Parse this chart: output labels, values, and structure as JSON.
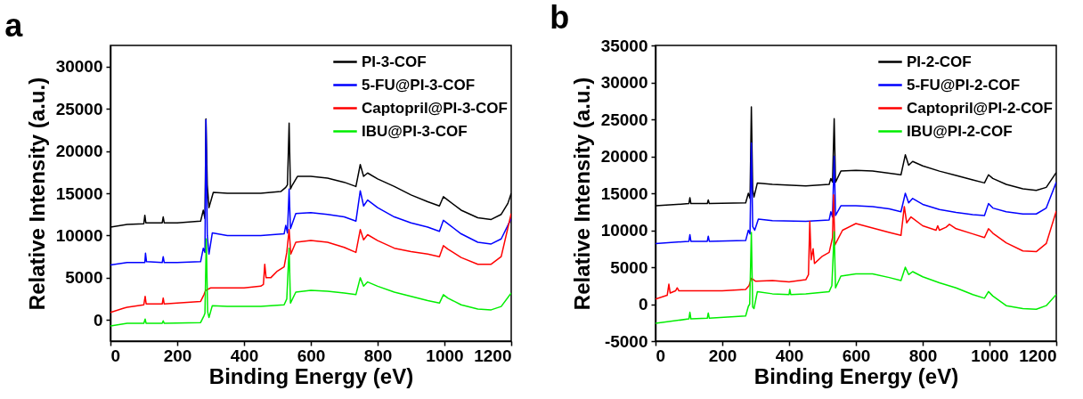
{
  "chart_data": [
    {
      "type": "line",
      "title": "a",
      "xlabel": "Binding Energy (eV)",
      "ylabel": "Relative Intensity (a.u.)",
      "xlim": [
        0,
        1200
      ],
      "xticks": [
        0,
        200,
        400,
        600,
        800,
        1000,
        1200
      ],
      "ylim": [
        -2500,
        32500
      ],
      "yticks": [
        0,
        5000,
        10000,
        15000,
        20000,
        25000,
        30000
      ],
      "legend": "top right",
      "series": [
        {
          "name": "PI-3-COF",
          "color": "#000000",
          "x": [
            0,
            50,
            100,
            103,
            106,
            155,
            158,
            161,
            200,
            270,
            278,
            283,
            286,
            290,
            295,
            300,
            308,
            350,
            400,
            450,
            510,
            525,
            530,
            535,
            539,
            545,
            560,
            600,
            650,
            700,
            735,
            748,
            758,
            770,
            800,
            850,
            900,
            950,
            985,
            997,
            1010,
            1050,
            1100,
            1140,
            1170,
            1190,
            1200
          ],
          "values": [
            11000,
            11300,
            11400,
            12400,
            11500,
            11500,
            12200,
            11500,
            11500,
            11700,
            13000,
            12000,
            23800,
            16000,
            13300,
            14000,
            15100,
            15000,
            15000,
            15000,
            15200,
            15700,
            16000,
            23300,
            15500,
            16000,
            17000,
            17000,
            16800,
            16300,
            15800,
            18400,
            17000,
            17400,
            16700,
            15800,
            14800,
            14000,
            13500,
            14600,
            14200,
            13000,
            12100,
            11900,
            12500,
            13800,
            15000
          ]
        },
        {
          "name": "5-FU@PI-3-COF",
          "color": "#0000ff",
          "x": [
            0,
            50,
            103,
            105,
            108,
            155,
            158,
            161,
            200,
            270,
            278,
            283,
            286,
            290,
            295,
            305,
            350,
            450,
            520,
            525,
            530,
            535,
            539,
            555,
            600,
            650,
            700,
            735,
            748,
            758,
            770,
            800,
            850,
            900,
            950,
            985,
            997,
            1010,
            1050,
            1100,
            1140,
            1170,
            1200
          ],
          "values": [
            6500,
            6800,
            6800,
            7900,
            6900,
            6800,
            7500,
            6800,
            6800,
            6900,
            8500,
            8000,
            23700,
            10000,
            7800,
            10300,
            10000,
            10000,
            10200,
            11200,
            10300,
            15500,
            10800,
            12600,
            12700,
            12500,
            12200,
            11700,
            15300,
            13500,
            14200,
            13300,
            12200,
            11500,
            11000,
            10500,
            11800,
            11400,
            10200,
            9200,
            9000,
            9600,
            12000
          ]
        },
        {
          "name": "Captopril@PI-3-COF",
          "color": "#ff0000",
          "x": [
            0,
            40,
            50,
            100,
            104,
            107,
            155,
            158,
            161,
            200,
            270,
            280,
            285,
            300,
            350,
            400,
            450,
            458,
            462,
            466,
            480,
            500,
            520,
            528,
            535,
            540,
            555,
            600,
            650,
            700,
            735,
            748,
            758,
            770,
            800,
            850,
            900,
            950,
            985,
            997,
            1010,
            1050,
            1100,
            1140,
            1170,
            1200
          ],
          "values": [
            900,
            1400,
            1500,
            1800,
            2800,
            1900,
            1900,
            2600,
            1900,
            2000,
            2200,
            3000,
            3500,
            3800,
            3800,
            3800,
            4000,
            4200,
            6600,
            5000,
            5000,
            5800,
            6300,
            8000,
            10700,
            7800,
            9200,
            9400,
            9200,
            8600,
            8000,
            10700,
            9500,
            10100,
            9400,
            8500,
            8100,
            7800,
            7500,
            8800,
            8400,
            7400,
            6600,
            6600,
            7500,
            12600
          ]
        },
        {
          "name": "IBU@PI-3-COF",
          "color": "#00ee00",
          "x": [
            0,
            50,
            100,
            104,
            107,
            155,
            158,
            161,
            270,
            280,
            283,
            287,
            291,
            295,
            305,
            350,
            450,
            520,
            528,
            535,
            539,
            555,
            600,
            650,
            700,
            735,
            748,
            758,
            770,
            800,
            850,
            900,
            950,
            985,
            997,
            1010,
            1050,
            1100,
            1140,
            1170,
            1200
          ],
          "values": [
            -700,
            -400,
            -400,
            100,
            -400,
            -400,
            -100,
            -400,
            -300,
            500,
            800,
            9600,
            1000,
            300,
            1700,
            1600,
            1600,
            1800,
            2500,
            8500,
            2000,
            3300,
            3500,
            3400,
            3200,
            3000,
            5000,
            4000,
            4500,
            4000,
            3300,
            2800,
            2300,
            2000,
            3000,
            2600,
            1800,
            1300,
            1200,
            1600,
            3200
          ]
        }
      ]
    },
    {
      "type": "line",
      "title": "b",
      "xlabel": "Binding Energy (eV)",
      "ylabel": "Relative Intensity (a.u.)",
      "xlim": [
        0,
        1200
      ],
      "xticks": [
        0,
        200,
        400,
        600,
        800,
        1000,
        1200
      ],
      "ylim": [
        -5000,
        35000
      ],
      "yticks": [
        -5000,
        0,
        5000,
        10000,
        15000,
        20000,
        25000,
        30000,
        35000
      ],
      "legend": "top right",
      "series": [
        {
          "name": "PI-2-COF",
          "color": "#000000",
          "x": [
            0,
            100,
            103,
            106,
            155,
            158,
            161,
            270,
            278,
            283,
            287,
            291,
            295,
            305,
            350,
            450,
            520,
            525,
            530,
            535,
            539,
            555,
            600,
            650,
            700,
            735,
            748,
            758,
            770,
            800,
            850,
            900,
            950,
            985,
            997,
            1010,
            1050,
            1100,
            1140,
            1170,
            1200
          ],
          "values": [
            13300,
            13600,
            14400,
            13600,
            13600,
            14100,
            13600,
            13700,
            15000,
            14300,
            26700,
            15500,
            14500,
            16400,
            16200,
            16000,
            16200,
            17000,
            16500,
            25100,
            16500,
            18000,
            18100,
            18000,
            17700,
            17500,
            20200,
            18800,
            19300,
            18700,
            18000,
            17400,
            16800,
            16400,
            17500,
            17000,
            16200,
            15600,
            15400,
            15800,
            17800
          ]
        },
        {
          "name": "5-FU@PI-2-COF",
          "color": "#0000ff",
          "x": [
            0,
            100,
            103,
            106,
            155,
            158,
            161,
            270,
            278,
            283,
            287,
            291,
            297,
            308,
            350,
            450,
            520,
            525,
            530,
            535,
            539,
            555,
            600,
            650,
            700,
            735,
            748,
            758,
            770,
            800,
            850,
            900,
            950,
            985,
            997,
            1010,
            1050,
            1100,
            1140,
            1170,
            1200
          ],
          "values": [
            8200,
            8500,
            9400,
            8500,
            8500,
            9200,
            8500,
            8600,
            10000,
            9500,
            21800,
            10500,
            10000,
            11500,
            11300,
            11200,
            11400,
            12500,
            11800,
            20000,
            12000,
            13300,
            13300,
            13200,
            12900,
            12500,
            15000,
            13700,
            14300,
            13500,
            12800,
            12400,
            12100,
            12000,
            13600,
            13000,
            12500,
            12200,
            12200,
            13000,
            16500
          ]
        },
        {
          "name": "Captopril@PI-2-COF",
          "color": "#ff0000",
          "x": [
            0,
            35,
            40,
            44,
            60,
            65,
            70,
            200,
            270,
            280,
            287,
            300,
            350,
            400,
            450,
            458,
            462,
            466,
            472,
            476,
            500,
            520,
            530,
            533,
            537,
            560,
            600,
            650,
            700,
            735,
            745,
            752,
            765,
            800,
            840,
            845,
            850,
            870,
            880,
            900,
            950,
            985,
            997,
            1010,
            1050,
            1100,
            1140,
            1170,
            1200
          ],
          "values": [
            700,
            1200,
            2700,
            1500,
            1800,
            2200,
            1800,
            1800,
            2000,
            2500,
            3500,
            3100,
            3200,
            3000,
            3300,
            4000,
            11200,
            6000,
            7500,
            5500,
            6500,
            7000,
            9000,
            14800,
            8000,
            10000,
            10900,
            10300,
            9700,
            9300,
            13200,
            11000,
            11800,
            10600,
            10000,
            10600,
            10000,
            10400,
            10800,
            10200,
            9500,
            9000,
            10200,
            9600,
            8300,
            7200,
            7100,
            8200,
            12600
          ]
        },
        {
          "name": "IBU@PI-2-COF",
          "color": "#00ee00",
          "x": [
            0,
            100,
            103,
            106,
            155,
            158,
            161,
            270,
            278,
            282,
            287,
            291,
            295,
            305,
            350,
            400,
            402,
            405,
            450,
            520,
            528,
            535,
            539,
            555,
            600,
            650,
            700,
            735,
            748,
            758,
            770,
            800,
            850,
            900,
            950,
            985,
            997,
            1010,
            1050,
            1100,
            1140,
            1170,
            1200
          ],
          "values": [
            -2600,
            -2000,
            -1100,
            -2000,
            -1900,
            -1200,
            -1900,
            -1600,
            -300,
            0,
            9700,
            -400,
            -600,
            1700,
            1400,
            1300,
            2000,
            1300,
            1400,
            1700,
            2500,
            9800,
            2200,
            3800,
            4100,
            4100,
            3600,
            3200,
            5000,
            4000,
            4400,
            3700,
            2900,
            2200,
            1300,
            800,
            1700,
            1100,
            -200,
            -600,
            -700,
            -200,
            1300
          ]
        }
      ]
    }
  ]
}
